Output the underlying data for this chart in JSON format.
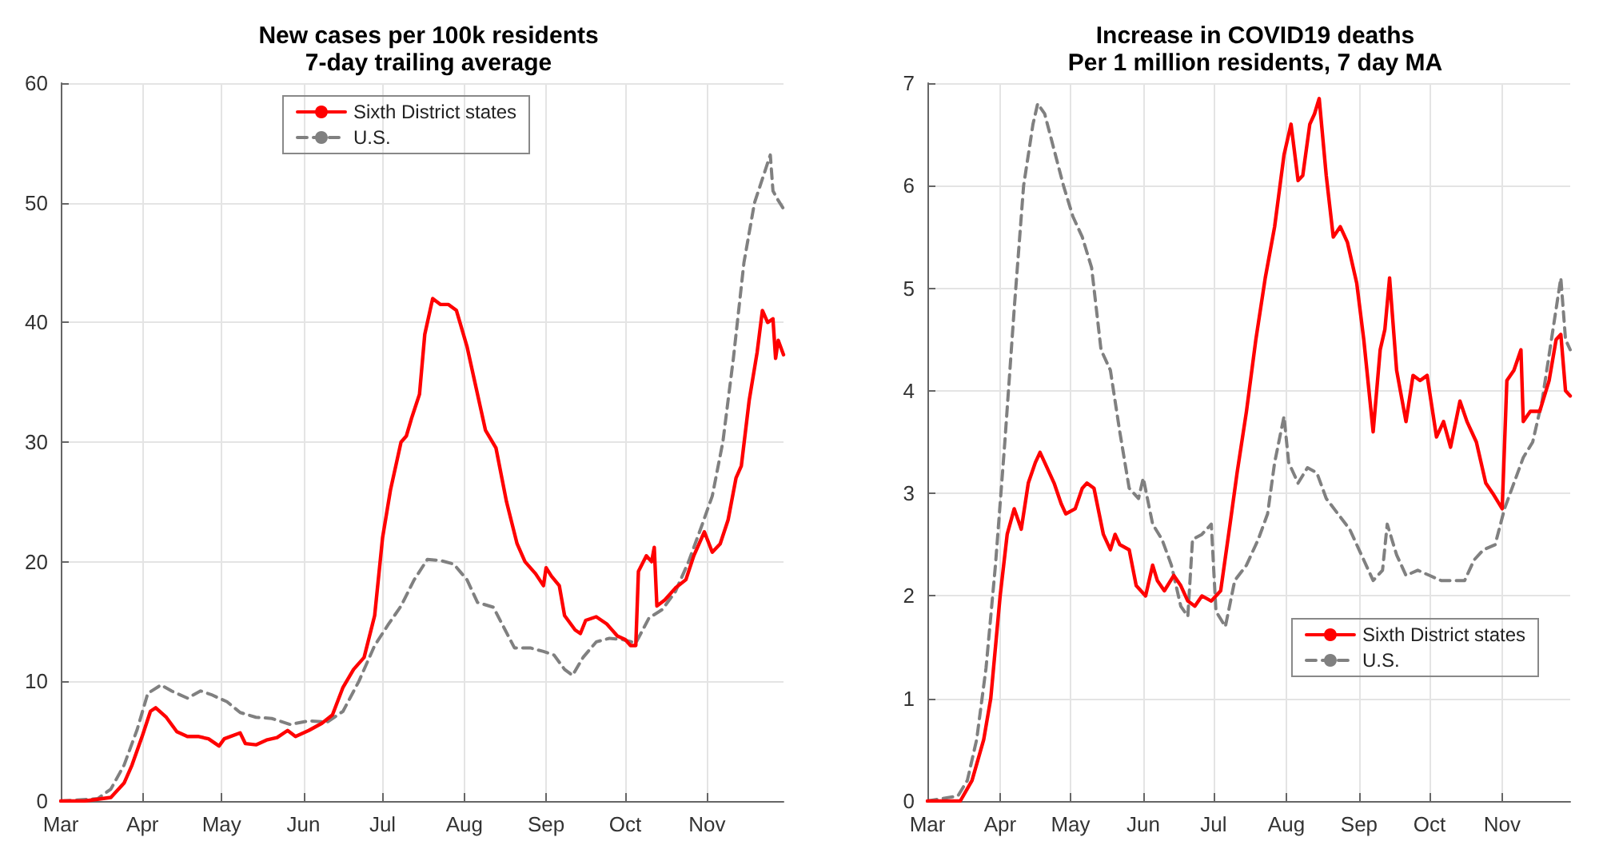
{
  "chart_data": [
    {
      "type": "line",
      "title": "New cases per 100k residents",
      "subtitle": "7-day trailing average",
      "xlim": [
        "--03-01",
        "--11-30"
      ],
      "xticks": [
        {
          "value": "--03-01",
          "label": "Mar"
        },
        {
          "value": "--04-01",
          "label": "Apr"
        },
        {
          "value": "--05-01",
          "label": "May"
        },
        {
          "value": "--06-01",
          "label": "Jun"
        },
        {
          "value": "--07-01",
          "label": "Jul"
        },
        {
          "value": "--08-01",
          "label": "Aug"
        },
        {
          "value": "--09-01",
          "label": "Sep"
        },
        {
          "value": "--10-01",
          "label": "Oct"
        },
        {
          "value": "--11-01",
          "label": "Nov"
        }
      ],
      "ylim": [
        0,
        60
      ],
      "yticks": [
        0,
        10,
        20,
        30,
        40,
        50,
        60
      ],
      "grid": true,
      "legend": "top",
      "marker": "none",
      "series": [
        {
          "name": "Sixth District states",
          "color": "#ff0000",
          "line_style": "solid",
          "x": [
            "--03-01",
            "--03-10",
            "--03-20",
            "--03-25",
            "--03-28",
            "--04-01",
            "--04-04",
            "--04-06",
            "--04-10",
            "--04-14",
            "--04-18",
            "--04-22",
            "--04-26",
            "--04-30",
            "--05-02",
            "--05-08",
            "--05-10",
            "--05-14",
            "--05-18",
            "--05-22",
            "--05-26",
            "--05-29",
            "--06-03",
            "--06-08",
            "--06-12",
            "--06-16",
            "--06-20",
            "--06-24",
            "--06-28",
            "--07-01",
            "--07-04",
            "--07-08",
            "--07-10",
            "--07-12",
            "--07-15",
            "--07-17",
            "--07-20",
            "--07-23",
            "--07-26",
            "--07-29",
            "--08-02",
            "--08-05",
            "--08-09",
            "--08-13",
            "--08-17",
            "--08-21",
            "--08-24",
            "--08-28",
            "--08-31",
            "--09-01",
            "--09-03",
            "--09-06",
            "--09-08",
            "--09-12",
            "--09-14",
            "--09-16",
            "--09-20",
            "--09-24",
            "--09-28",
            "--10-01",
            "--10-03",
            "--10-05",
            "--10-06",
            "--10-09",
            "--10-11",
            "--10-12",
            "--10-13",
            "--10-16",
            "--10-20",
            "--10-24",
            "--10-27",
            "--10-31",
            "--11-03",
            "--11-06",
            "--11-09",
            "--11-12",
            "--11-14",
            "--11-17",
            "--11-20",
            "--11-22",
            "--11-24",
            "--11-26",
            "--11-27",
            "--11-28",
            "--11-30"
          ],
          "values": [
            0,
            0,
            0.3,
            1.5,
            3,
            5.5,
            7.5,
            7.8,
            7,
            5.8,
            5.4,
            5.4,
            5.2,
            4.6,
            5.2,
            5.7,
            4.8,
            4.7,
            5.1,
            5.3,
            5.9,
            5.4,
            5.9,
            6.5,
            7.2,
            9.5,
            11,
            12,
            15.5,
            22,
            26,
            30,
            30.5,
            32,
            34,
            39,
            42,
            41.5,
            41.5,
            41,
            38,
            35,
            31,
            29.5,
            25,
            21.5,
            20,
            19,
            18,
            19.5,
            18.8,
            18,
            15.5,
            14.3,
            14,
            15.1,
            15.4,
            14.8,
            13.8,
            13.5,
            13,
            13,
            19.2,
            20.5,
            20,
            21.2,
            16.3,
            16.8,
            17.8,
            18.5,
            20.5,
            22.5,
            20.8,
            21.5,
            23.5,
            27,
            28,
            33.5,
            37.5,
            41,
            40,
            40.3,
            37,
            38.5,
            37.3
          ]
        },
        {
          "name": "U.S.",
          "color": "#808080",
          "line_style": "dashed",
          "x": [
            "--03-01",
            "--03-15",
            "--03-20",
            "--03-25",
            "--03-30",
            "--04-03",
            "--04-08",
            "--04-12",
            "--04-18",
            "--04-23",
            "--04-27",
            "--05-03",
            "--05-08",
            "--05-14",
            "--05-20",
            "--05-27",
            "--06-03",
            "--06-10",
            "--06-16",
            "--06-22",
            "--06-28",
            "--07-03",
            "--07-08",
            "--07-13",
            "--07-18",
            "--07-23",
            "--07-28",
            "--08-02",
            "--08-06",
            "--08-12",
            "--08-16",
            "--08-20",
            "--08-26",
            "--08-31",
            "--09-04",
            "--09-08",
            "--09-11",
            "--09-15",
            "--09-20",
            "--09-25",
            "--09-30",
            "--10-05",
            "--10-10",
            "--10-15",
            "--10-20",
            "--10-25",
            "--10-30",
            "--11-03",
            "--11-07",
            "--11-11",
            "--11-15",
            "--11-19",
            "--11-22",
            "--11-25",
            "--11-26",
            "--11-28",
            "--11-30"
          ],
          "values": [
            0,
            0.2,
            1,
            3,
            6,
            9,
            9.7,
            9.2,
            8.6,
            9.2,
            8.9,
            8.3,
            7.4,
            7,
            6.9,
            6.4,
            6.7,
            6.6,
            7.5,
            10,
            13,
            14.7,
            16.3,
            18.5,
            20.2,
            20.1,
            19.8,
            18.5,
            16.6,
            16.2,
            14.5,
            12.8,
            12.8,
            12.5,
            12.2,
            11,
            10.5,
            12,
            13.3,
            13.6,
            13.5,
            13.2,
            15.3,
            16,
            17.5,
            20,
            23,
            25.5,
            30,
            37,
            45,
            50,
            52,
            54,
            51,
            50.2,
            49.5
          ]
        }
      ]
    },
    {
      "type": "line",
      "title": "Increase in COVID19 deaths",
      "subtitle": "Per 1 million residents, 7 day MA",
      "xlim": [
        "--03-01",
        "--11-30"
      ],
      "xticks": [
        {
          "value": "--03-01",
          "label": "Mar"
        },
        {
          "value": "--04-01",
          "label": "Apr"
        },
        {
          "value": "--05-01",
          "label": "May"
        },
        {
          "value": "--06-01",
          "label": "Jun"
        },
        {
          "value": "--07-01",
          "label": "Jul"
        },
        {
          "value": "--08-01",
          "label": "Aug"
        },
        {
          "value": "--09-01",
          "label": "Sep"
        },
        {
          "value": "--10-01",
          "label": "Oct"
        },
        {
          "value": "--11-01",
          "label": "Nov"
        }
      ],
      "ylim": [
        0,
        7
      ],
      "yticks": [
        0,
        1,
        2,
        3,
        4,
        5,
        6,
        7
      ],
      "grid": true,
      "legend": "bottom right",
      "marker": "none",
      "series": [
        {
          "name": "Sixth District states",
          "color": "#ff0000",
          "line_style": "solid",
          "x": [
            "--03-01",
            "--03-15",
            "--03-20",
            "--03-25",
            "--03-28",
            "--04-01",
            "--04-04",
            "--04-07",
            "--04-10",
            "--04-13",
            "--04-16",
            "--04-18",
            "--04-20",
            "--04-24",
            "--04-27",
            "--04-29",
            "--05-03",
            "--05-06",
            "--05-08",
            "--05-11",
            "--05-15",
            "--05-18",
            "--05-20",
            "--05-22",
            "--05-26",
            "--05-29",
            "--06-02",
            "--06-05",
            "--06-07",
            "--06-10",
            "--06-14",
            "--06-17",
            "--06-20",
            "--06-23",
            "--06-26",
            "--06-30",
            "--07-04",
            "--07-08",
            "--07-11",
            "--07-15",
            "--07-19",
            "--07-23",
            "--07-27",
            "--07-31",
            "--08-03",
            "--08-06",
            "--08-08",
            "--08-11",
            "--08-13",
            "--08-15",
            "--08-18",
            "--08-21",
            "--08-24",
            "--08-27",
            "--08-31",
            "--09-03",
            "--09-07",
            "--09-10",
            "--09-12",
            "--09-14",
            "--09-17",
            "--09-21",
            "--09-24",
            "--09-27",
            "--09-30",
            "--10-04",
            "--10-07",
            "--10-10",
            "--10-14",
            "--10-17",
            "--10-21",
            "--10-25",
            "--10-28",
            "--11-01",
            "--11-03",
            "--11-06",
            "--11-09",
            "--11-10",
            "--11-13",
            "--11-17",
            "--11-21",
            "--11-24",
            "--11-26",
            "--11-28",
            "--11-30"
          ],
          "values": [
            0,
            0,
            0.2,
            0.6,
            1,
            2,
            2.6,
            2.85,
            2.65,
            3.1,
            3.3,
            3.4,
            3.3,
            3.1,
            2.9,
            2.8,
            2.85,
            3.05,
            3.1,
            3.05,
            2.6,
            2.45,
            2.6,
            2.5,
            2.45,
            2.1,
            2,
            2.3,
            2.15,
            2.05,
            2.2,
            2.1,
            1.95,
            1.9,
            2,
            1.95,
            2.05,
            2.7,
            3.2,
            3.8,
            4.5,
            5.1,
            5.6,
            6.3,
            6.6,
            6.05,
            6.1,
            6.6,
            6.7,
            6.85,
            6.1,
            5.5,
            5.6,
            5.45,
            5.05,
            4.5,
            3.6,
            4.4,
            4.6,
            5.1,
            4.2,
            3.7,
            4.15,
            4.1,
            4.15,
            3.55,
            3.7,
            3.45,
            3.9,
            3.7,
            3.5,
            3.1,
            3,
            2.85,
            4.1,
            4.2,
            4.4,
            3.7,
            3.8,
            3.8,
            4.1,
            4.5,
            4.55,
            4,
            3.95
          ]
        },
        {
          "name": "U.S.",
          "color": "#808080",
          "line_style": "dashed",
          "x": [
            "--03-01",
            "--03-14",
            "--03-18",
            "--03-22",
            "--03-26",
            "--03-30",
            "--04-03",
            "--04-07",
            "--04-11",
            "--04-15",
            "--04-17",
            "--04-20",
            "--04-24",
            "--04-28",
            "--05-02",
            "--05-06",
            "--05-10",
            "--05-14",
            "--05-18",
            "--05-22",
            "--05-26",
            "--05-30",
            "--06-01",
            "--06-05",
            "--06-09",
            "--06-13",
            "--06-17",
            "--06-20",
            "--06-22",
            "--06-26",
            "--06-30",
            "--07-02",
            "--07-06",
            "--07-10",
            "--07-15",
            "--07-20",
            "--07-24",
            "--07-27",
            "--07-31",
            "--08-02",
            "--08-06",
            "--08-10",
            "--08-14",
            "--08-18",
            "--08-23",
            "--08-28",
            "--09-03",
            "--09-07",
            "--09-11",
            "--09-13",
            "--09-17",
            "--09-21",
            "--09-26",
            "--10-01",
            "--10-06",
            "--10-11",
            "--10-16",
            "--10-20",
            "--10-24",
            "--10-29",
            "--11-02",
            "--11-06",
            "--11-10",
            "--11-14",
            "--11-18",
            "--11-22",
            "--11-26",
            "--11-28",
            "--11-30"
          ],
          "values": [
            0,
            0.05,
            0.2,
            0.6,
            1.3,
            2.3,
            3.5,
            4.8,
            6,
            6.6,
            6.8,
            6.7,
            6.35,
            6,
            5.7,
            5.5,
            5.2,
            4.4,
            4.2,
            3.6,
            3.05,
            2.95,
            3.15,
            2.7,
            2.55,
            2.3,
            1.9,
            1.8,
            2.55,
            2.6,
            2.7,
            1.85,
            1.7,
            2.15,
            2.3,
            2.55,
            2.8,
            3.3,
            3.75,
            3.3,
            3.1,
            3.25,
            3.2,
            2.95,
            2.8,
            2.65,
            2.35,
            2.15,
            2.25,
            2.7,
            2.4,
            2.2,
            2.25,
            2.2,
            2.15,
            2.15,
            2.15,
            2.35,
            2.45,
            2.5,
            2.85,
            3.1,
            3.35,
            3.5,
            3.9,
            4.5,
            5.1,
            4.5,
            4.4
          ]
        }
      ]
    }
  ]
}
